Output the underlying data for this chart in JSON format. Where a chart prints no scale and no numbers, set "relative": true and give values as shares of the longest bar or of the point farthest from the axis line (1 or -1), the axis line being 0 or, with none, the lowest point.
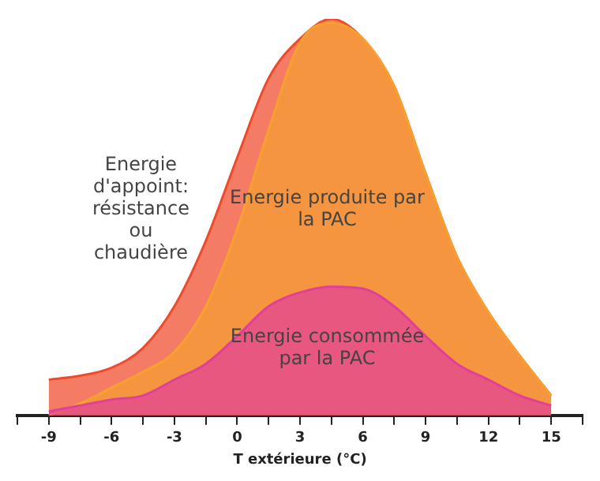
{
  "chart_data": {
    "type": "area",
    "relative": true,
    "xlabel": "T extérieure (°C)",
    "x": [
      -9,
      -7.5,
      -6,
      -4.5,
      -3,
      -1.5,
      0,
      1.5,
      3,
      4.5,
      6,
      7.5,
      9,
      10.5,
      12,
      13.5,
      15
    ],
    "xlim": [
      -10.5,
      16.5
    ],
    "xticks": [
      {
        "value": -10.5,
        "label": null
      },
      -9,
      {
        "value": -7.5,
        "label": null
      },
      -6,
      {
        "value": -4.5,
        "label": null
      },
      -3,
      {
        "value": -1.5,
        "label": null
      },
      0,
      {
        "value": 1.5,
        "label": null
      },
      3,
      {
        "value": 4.5,
        "label": null
      },
      6,
      {
        "value": 7.5,
        "label": null
      },
      9,
      {
        "value": 10.5,
        "label": null
      },
      12,
      {
        "value": 13.5,
        "label": null
      },
      15,
      {
        "value": 16.5,
        "label": null
      }
    ],
    "grid": false,
    "legend": false,
    "series": [
      {
        "name": "Energie d'appoint: résistance ou chaudière",
        "color": "#f04a2a",
        "values": [
          0.09,
          0.1,
          0.12,
          0.17,
          0.275,
          0.44,
          0.65,
          0.85,
          0.95,
          1.0,
          0.95,
          0.83,
          0.61,
          0.4,
          0.26,
          0.15,
          0.05
        ]
      },
      {
        "name": "Energie produite par la PAC",
        "color": "#f7a030",
        "values": [
          0,
          0.03,
          0.07,
          0.11,
          0.16,
          0.275,
          0.47,
          0.72,
          0.94,
          0.99,
          0.95,
          0.83,
          0.61,
          0.4,
          0.26,
          0.15,
          0.05
        ]
      },
      {
        "name": "Energie consommée par la PAC",
        "color": "#e0409a",
        "values": [
          0.01,
          0.025,
          0.04,
          0.05,
          0.09,
          0.13,
          0.2,
          0.275,
          0.31,
          0.325,
          0.32,
          0.275,
          0.2,
          0.13,
          0.09,
          0.05,
          0.025
        ]
      }
    ]
  }
}
